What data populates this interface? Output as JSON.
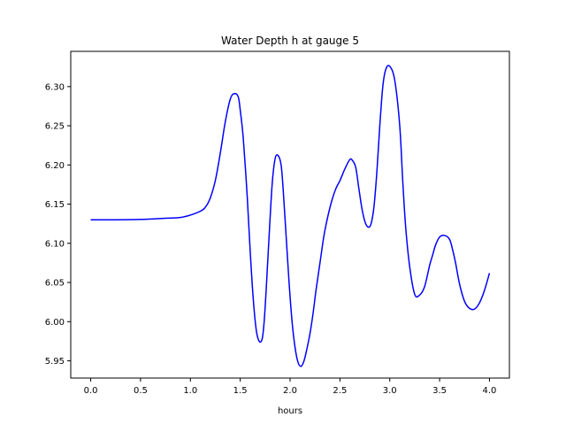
{
  "chart_data": {
    "type": "line",
    "title": "Water Depth h at gauge 5",
    "xlabel": "hours",
    "ylabel": "",
    "xlim": [
      -0.2,
      4.2
    ],
    "ylim": [
      5.928,
      6.345
    ],
    "xticks": [
      0.0,
      0.5,
      1.0,
      1.5,
      2.0,
      2.5,
      3.0,
      3.5,
      4.0
    ],
    "xtick_labels": [
      "0.0",
      "0.5",
      "1.0",
      "1.5",
      "2.0",
      "2.5",
      "3.0",
      "3.5",
      "4.0"
    ],
    "yticks": [
      5.95,
      6.0,
      6.05,
      6.1,
      6.15,
      6.2,
      6.25,
      6.3
    ],
    "ytick_labels": [
      "5.95",
      "6.00",
      "6.05",
      "6.10",
      "6.15",
      "6.20",
      "6.25",
      "6.30"
    ],
    "grid": false,
    "series": [
      {
        "name": "",
        "color": "#0000ff",
        "x": [
          0.0,
          0.25,
          0.5,
          0.75,
          0.9,
          1.0,
          1.1,
          1.15,
          1.2,
          1.25,
          1.3,
          1.35,
          1.4,
          1.44,
          1.48,
          1.5,
          1.53,
          1.57,
          1.6,
          1.63,
          1.66,
          1.69,
          1.72,
          1.74,
          1.76,
          1.79,
          1.82,
          1.85,
          1.88,
          1.91,
          1.93,
          1.96,
          1.99,
          2.02,
          2.05,
          2.08,
          2.11,
          2.14,
          2.17,
          2.2,
          2.23,
          2.26,
          2.3,
          2.34,
          2.38,
          2.42,
          2.46,
          2.5,
          2.55,
          2.6,
          2.63,
          2.66,
          2.69,
          2.72,
          2.75,
          2.78,
          2.81,
          2.84,
          2.87,
          2.9,
          2.93,
          2.96,
          3.0,
          3.05,
          3.1,
          3.13,
          3.16,
          3.2,
          3.25,
          3.3,
          3.35,
          3.4,
          3.43,
          3.46,
          3.5,
          3.55,
          3.6,
          3.63,
          3.66,
          3.7,
          3.75,
          3.8,
          3.85,
          3.9,
          3.95,
          4.0
        ],
        "y": [
          6.13,
          6.13,
          6.1305,
          6.132,
          6.133,
          6.136,
          6.141,
          6.146,
          6.158,
          6.18,
          6.215,
          6.255,
          6.284,
          6.291,
          6.287,
          6.27,
          6.235,
          6.16,
          6.09,
          6.03,
          5.99,
          5.975,
          5.978,
          6.0,
          6.04,
          6.11,
          6.175,
          6.208,
          6.212,
          6.2,
          6.17,
          6.11,
          6.05,
          6.0,
          5.967,
          5.948,
          5.943,
          5.95,
          5.966,
          5.985,
          6.01,
          6.04,
          6.075,
          6.11,
          6.135,
          6.155,
          6.17,
          6.18,
          6.195,
          6.207,
          6.205,
          6.196,
          6.17,
          6.145,
          6.128,
          6.121,
          6.124,
          6.145,
          6.19,
          6.25,
          6.3,
          6.322,
          6.326,
          6.308,
          6.25,
          6.18,
          6.12,
          6.07,
          6.035,
          6.034,
          6.045,
          6.072,
          6.085,
          6.098,
          6.108,
          6.11,
          6.105,
          6.092,
          6.075,
          6.048,
          6.026,
          6.017,
          6.016,
          6.024,
          6.04,
          6.062
        ]
      }
    ]
  }
}
